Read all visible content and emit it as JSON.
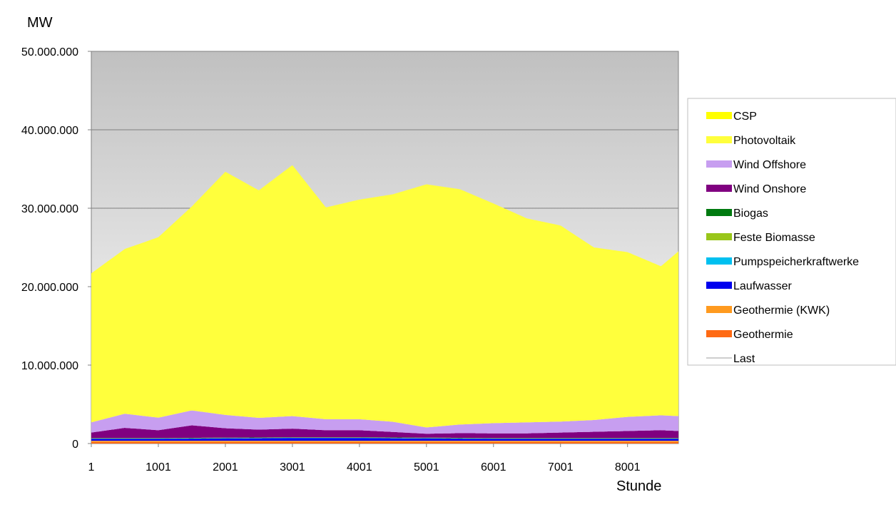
{
  "chart_data": {
    "type": "area",
    "stacked": true,
    "title": "",
    "ylabel": "MW",
    "xlabel": "Stunde",
    "x_range": [
      1,
      8760
    ],
    "ylim": [
      0,
      50000000
    ],
    "y_ticks": [
      0,
      10000000,
      20000000,
      30000000,
      40000000,
      50000000
    ],
    "y_tick_labels": [
      "0",
      "10.000.000",
      "20.000.000",
      "30.000.000",
      "40.000.000",
      "50.000.000"
    ],
    "x_ticks": [
      1,
      1001,
      2001,
      3001,
      4001,
      5001,
      6001,
      7001,
      8001
    ],
    "x_tick_labels": [
      "1",
      "1001",
      "2001",
      "3001",
      "4001",
      "5001",
      "6001",
      "7001",
      "8001"
    ],
    "grid": "horizontal",
    "plot_background": "gradient grey to light grey",
    "legend_position": "right",
    "series": [
      {
        "name": "Geothermie",
        "color": "#ff6a13",
        "x": [
          1,
          8760
        ],
        "values": [
          200000,
          200000
        ]
      },
      {
        "name": "Geothermie (KWK)",
        "color": "#ff9a1f",
        "x": [
          1,
          8760
        ],
        "values": [
          150000,
          150000
        ]
      },
      {
        "name": "Laufwasser",
        "color": "#0000ee",
        "x": [
          1,
          1001,
          2001,
          3001,
          4001,
          5001,
          6001,
          7001,
          8001,
          8760
        ],
        "values": [
          250000,
          250000,
          300000,
          350000,
          350000,
          300000,
          250000,
          250000,
          250000,
          250000
        ]
      },
      {
        "name": "Pumpspeicherkraftwerke",
        "color": "#00c0f0",
        "x": [
          1,
          8760
        ],
        "values": [
          30000,
          30000
        ]
      },
      {
        "name": "Feste Biomasse",
        "color": "#99c61a",
        "x": [
          1,
          8760
        ],
        "values": [
          30000,
          30000
        ]
      },
      {
        "name": "Biogas",
        "color": "#007a10",
        "x": [
          1,
          8760
        ],
        "values": [
          40000,
          40000
        ]
      },
      {
        "name": "Wind Onshore",
        "color": "#800080",
        "x": [
          1,
          500,
          1001,
          1500,
          2001,
          2500,
          3001,
          3500,
          4001,
          4500,
          5001,
          5500,
          6001,
          6500,
          7001,
          7500,
          8001,
          8500,
          8760
        ],
        "values": [
          700000,
          1300000,
          1000000,
          1600000,
          1200000,
          1000000,
          1100000,
          900000,
          900000,
          700000,
          500000,
          600000,
          600000,
          600000,
          700000,
          800000,
          900000,
          1000000,
          900000
        ]
      },
      {
        "name": "Wind Offshore",
        "color": "#c79ef0",
        "x": [
          1,
          500,
          1001,
          1500,
          2001,
          2500,
          3001,
          3500,
          4001,
          4500,
          5001,
          5500,
          6001,
          6500,
          7001,
          7500,
          8001,
          8500,
          8760
        ],
        "values": [
          1300000,
          1800000,
          1600000,
          1900000,
          1700000,
          1500000,
          1600000,
          1400000,
          1400000,
          1300000,
          800000,
          1100000,
          1300000,
          1400000,
          1400000,
          1500000,
          1800000,
          1900000,
          1900000
        ]
      },
      {
        "name": "Photovoltaik",
        "color": "#ffff3c",
        "x": [
          1,
          500,
          1001,
          1500,
          2001,
          2500,
          3001,
          3500,
          4001,
          4500,
          5001,
          5500,
          6001,
          6500,
          7001,
          7500,
          8001,
          8500,
          8760
        ],
        "values": [
          19000000,
          21000000,
          23000000,
          26000000,
          31000000,
          29000000,
          32000000,
          27000000,
          28000000,
          29000000,
          31000000,
          30000000,
          28000000,
          26000000,
          25000000,
          22000000,
          21000000,
          19000000,
          21000000
        ]
      },
      {
        "name": "CSP",
        "color": "#ffff00",
        "x": [
          1,
          8760
        ],
        "values": [
          0,
          0
        ]
      },
      {
        "name": "Last",
        "color": "#bdbdbd",
        "x": [
          1,
          8760
        ],
        "values": [
          0,
          0
        ]
      }
    ],
    "legend_order": [
      "CSP",
      "Photovoltaik",
      "Wind Offshore",
      "Wind Onshore",
      "Biogas",
      "Feste Biomasse",
      "Pumpspeicherkraftwerke",
      "Laufwasser",
      "Geothermie (KWK)",
      "Geothermie",
      "Last"
    ]
  }
}
